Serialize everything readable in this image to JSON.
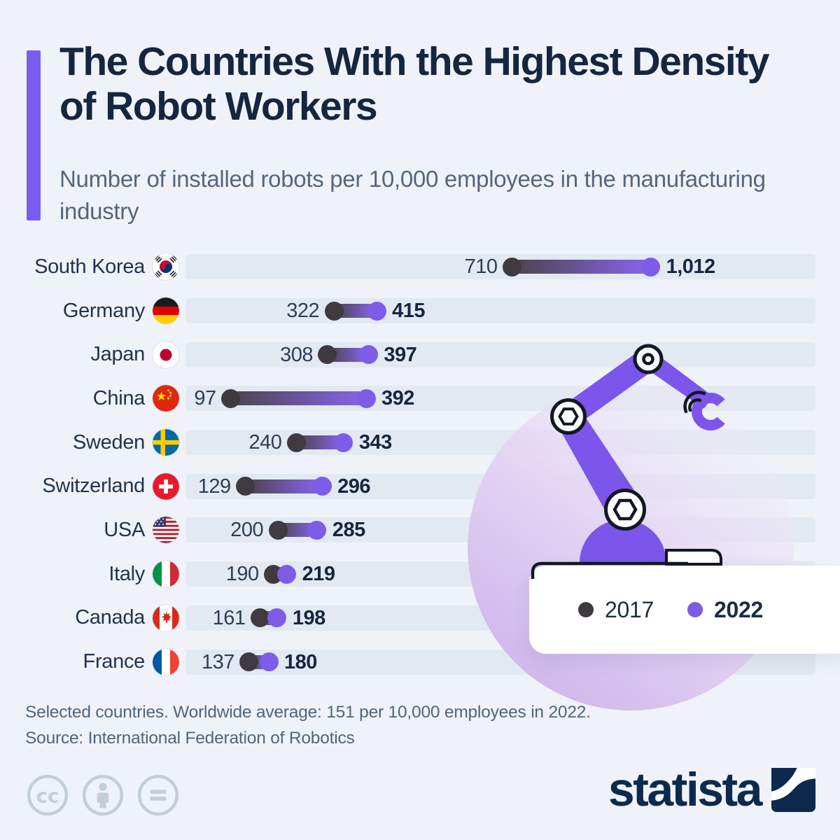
{
  "header": {
    "title": "The Countries With the Highest Density of Robot Workers",
    "subtitle": "Number of installed robots per 10,000 employees in the manufacturing industry"
  },
  "chart_data": {
    "type": "bar",
    "subtype": "dumbbell",
    "categories": [
      "South Korea",
      "Germany",
      "Japan",
      "China",
      "Sweden",
      "Switzerland",
      "USA",
      "Italy",
      "Canada",
      "France"
    ],
    "flags": [
      "south-korea",
      "germany",
      "japan",
      "china",
      "sweden",
      "switzerland",
      "usa",
      "italy",
      "canada",
      "france"
    ],
    "series": [
      {
        "name": "2017",
        "values": [
          710,
          322,
          308,
          97,
          240,
          129,
          200,
          190,
          161,
          137
        ]
      },
      {
        "name": "2022",
        "values": [
          1012,
          415,
          397,
          392,
          343,
          296,
          285,
          219,
          198,
          180
        ]
      }
    ],
    "xlim": [
      0,
      1371
    ],
    "grid": false,
    "legend_position": "bottom-right",
    "title": "The Countries With the Highest Density of Robot Workers",
    "xlabel": "",
    "ylabel": ""
  },
  "legend": {
    "items": [
      {
        "label": "2017",
        "color": "#3e3a40",
        "bold": false
      },
      {
        "label": "2022",
        "color": "#7d5ce8",
        "bold": true
      }
    ]
  },
  "footer": {
    "note": "Selected countries. Worldwide average: 151 per 10,000 employees in 2022.",
    "source": "Source: International Federation of Robotics"
  },
  "branding": {
    "logo_text": "statista",
    "license_icons": [
      "cc-icon",
      "attribution-person-icon",
      "no-derivatives-equals-icon"
    ]
  },
  "colors": {
    "background": "#eff3f9",
    "track": "#e3e9f2",
    "accent_purple": "#7a5cf0",
    "dot_2017": "#3e3a40",
    "dot_2022": "#7d5ce8",
    "title_navy": "#15263e",
    "robot_purple": "#7c55ea"
  }
}
